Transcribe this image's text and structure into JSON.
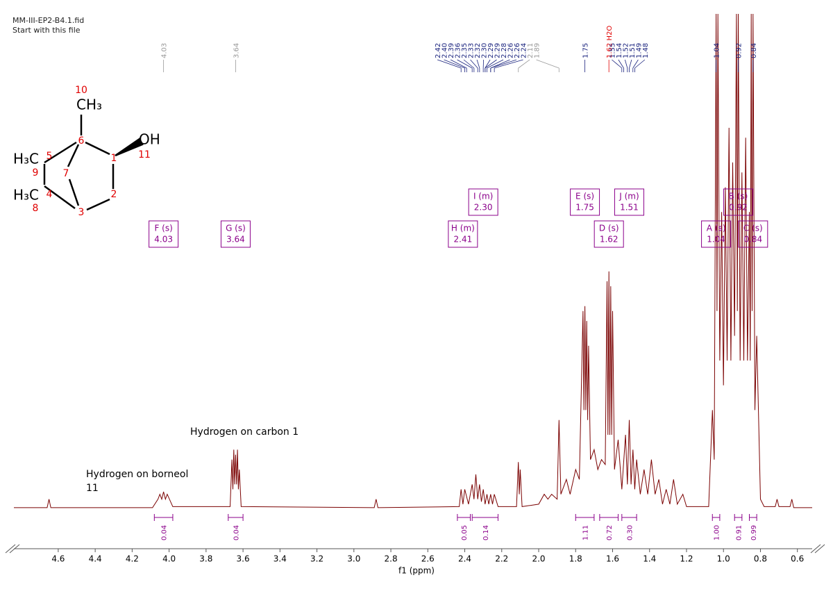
{
  "structure": {
    "labels": [
      "10",
      "CH₃",
      "6",
      "OH",
      "11",
      "1",
      "5",
      "H₃C",
      "9",
      "7",
      "2",
      "H₃C",
      "4",
      "8",
      "3"
    ]
  },
  "chart_data": {
    "type": "line",
    "title": "MM-III-EP2-B4.1.fid",
    "subtitle": "Start with this file",
    "x_label": "f1 (ppm)",
    "annotations": [
      "Hydrogen on carbon 1",
      "Hydrogen on borneol",
      "11"
    ],
    "xlim": [
      4.84,
      0.52
    ],
    "ylim": [
      0,
      100
    ],
    "xticks": [
      4.6,
      4.4,
      4.2,
      {
        "value": 4,
        "label": "4.0"
      },
      3.8,
      3.6,
      3.4,
      3.2,
      {
        "value": 3,
        "label": "3.0"
      },
      2.8,
      2.6,
      2.4,
      2.2,
      {
        "value": 2,
        "label": "2.0"
      },
      1.8,
      1.6,
      1.4,
      1.2,
      {
        "value": 1,
        "label": "1.0"
      },
      0.8,
      0.6
    ],
    "series": [
      {
        "color": "#7a0000",
        "x": [
          4.84,
          4.66,
          4.65,
          4.64,
          4.09,
          4.06,
          4.05,
          4.04,
          4.03,
          4.02,
          4.01,
          3.98,
          3.67,
          3.66,
          3.655,
          3.65,
          3.645,
          3.64,
          3.635,
          3.63,
          3.625,
          3.62,
          3.61,
          2.89,
          2.88,
          2.87,
          2.43,
          2.42,
          2.41,
          2.4,
          2.38,
          2.36,
          2.35,
          2.34,
          2.33,
          2.32,
          2.31,
          2.3,
          2.29,
          2.28,
          2.27,
          2.26,
          2.25,
          2.24,
          2.22,
          2.12,
          2.11,
          2.105,
          2.1,
          2.09,
          2.0,
          1.97,
          1.95,
          1.93,
          1.9,
          1.89,
          1.88,
          1.85,
          1.83,
          1.8,
          1.78,
          1.76,
          1.755,
          1.75,
          1.745,
          1.74,
          1.735,
          1.73,
          1.72,
          1.7,
          1.68,
          1.66,
          1.64,
          1.63,
          1.625,
          1.62,
          1.615,
          1.61,
          1.605,
          1.6,
          1.59,
          1.57,
          1.55,
          1.53,
          1.52,
          1.51,
          1.5,
          1.49,
          1.48,
          1.47,
          1.45,
          1.43,
          1.41,
          1.39,
          1.37,
          1.35,
          1.33,
          1.31,
          1.29,
          1.27,
          1.25,
          1.22,
          1.2,
          1.08,
          1.06,
          1.05,
          1.04,
          1.035,
          1.03,
          1.02,
          1.01,
          1.0,
          0.99,
          0.98,
          0.97,
          0.96,
          0.95,
          0.94,
          0.93,
          0.925,
          0.92,
          0.91,
          0.9,
          0.89,
          0.88,
          0.87,
          0.86,
          0.855,
          0.85,
          0.845,
          0.84,
          0.83,
          0.82,
          0.8,
          0.78,
          0.72,
          0.71,
          0.7,
          0.64,
          0.63,
          0.62,
          0.52
        ],
        "values": [
          0.3,
          0.3,
          2,
          0.3,
          0.3,
          2,
          3,
          2,
          3.5,
          2,
          3,
          0.5,
          0.5,
          10,
          4,
          12,
          5,
          11,
          5,
          12,
          4,
          8,
          0.5,
          0.3,
          2,
          0.3,
          0.5,
          4,
          1,
          4,
          1,
          5,
          2,
          7,
          2,
          5,
          1.5,
          4,
          1,
          3,
          1,
          3,
          1,
          3,
          0.5,
          0.5,
          9.5,
          3,
          8,
          0.5,
          1,
          3,
          2,
          3,
          2,
          18,
          3,
          6,
          3,
          8,
          6,
          40,
          20,
          41,
          20,
          38,
          18,
          33,
          10,
          12,
          8,
          10,
          9,
          46,
          15,
          48,
          15,
          45,
          15,
          40,
          8,
          14,
          4,
          15,
          5,
          18,
          5,
          12,
          4,
          10,
          3,
          8,
          3,
          10,
          3,
          6,
          1,
          4,
          1,
          6,
          1,
          3,
          0.5,
          0.5,
          20,
          10,
          100,
          40,
          100,
          30,
          60,
          25,
          65,
          30,
          77,
          30,
          70,
          35,
          100,
          40,
          100,
          30,
          68,
          30,
          75,
          30,
          60,
          30,
          100,
          40,
          100,
          20,
          35,
          2,
          0.5,
          0.5,
          2,
          0.5,
          0.5,
          2,
          0.3,
          0.3
        ]
      }
    ],
    "peak_labels": [
      {
        "value": 4.03,
        "label": "4.03",
        "color": "#999999"
      },
      {
        "value": 3.64,
        "label": "3.64",
        "color": "#999999"
      },
      {
        "value": 2.42,
        "label": "2.42",
        "color": "#1a237e"
      },
      {
        "value": 2.4,
        "label": "2.40",
        "color": "#1a237e"
      },
      {
        "value": 2.39,
        "label": "2.39",
        "color": "#1a237e"
      },
      {
        "value": 2.36,
        "label": "2.36",
        "color": "#1a237e"
      },
      {
        "value": 2.35,
        "label": "2.35",
        "color": "#1a237e"
      },
      {
        "value": 2.33,
        "label": "2.33",
        "color": "#1a237e"
      },
      {
        "value": 2.32,
        "label": "2.32",
        "color": "#1a237e"
      },
      {
        "value": 2.3,
        "label": "2.30",
        "color": "#1a237e"
      },
      {
        "value": 2.29,
        "label": "2.29",
        "color": "#1a237e"
      },
      {
        "value": 2.29,
        "label": "2.29",
        "color": "#1a237e"
      },
      {
        "value": 2.28,
        "label": "2.28",
        "color": "#1a237e"
      },
      {
        "value": 2.26,
        "label": "2.26",
        "color": "#1a237e"
      },
      {
        "value": 2.26,
        "label": "2.26",
        "color": "#1a237e"
      },
      {
        "value": 2.24,
        "label": "2.24",
        "color": "#1a237e"
      },
      {
        "value": 2.11,
        "label": "2.11",
        "color": "#999999"
      },
      {
        "value": 1.89,
        "label": "1.89",
        "color": "#999999"
      },
      {
        "value": 1.75,
        "label": "1.75",
        "color": "#1a237e"
      },
      {
        "value": 1.62,
        "label": "1.62 H2O",
        "color": "#e00000"
      },
      {
        "value": 1.55,
        "label": "1.55",
        "color": "#1a237e"
      },
      {
        "value": 1.54,
        "label": "1.54",
        "color": "#1a237e"
      },
      {
        "value": 1.52,
        "label": "1.52",
        "color": "#1a237e"
      },
      {
        "value": 1.51,
        "label": "1.51",
        "color": "#1a237e"
      },
      {
        "value": 1.49,
        "label": "1.49",
        "color": "#1a237e"
      },
      {
        "value": 1.48,
        "label": "1.48",
        "color": "#1a237e"
      },
      {
        "value": 1.04,
        "label": "1.04",
        "color": "#1a237e"
      },
      {
        "value": 0.92,
        "label": "0.92",
        "color": "#1a237e"
      },
      {
        "value": 0.84,
        "label": "0.84",
        "color": "#1a237e"
      }
    ],
    "multiplets": [
      {
        "label": "F (s)",
        "shift": 4.03
      },
      {
        "label": "G (s)",
        "shift": 3.64
      },
      {
        "label": "H (m)",
        "shift": 2.41
      },
      {
        "label": "I (m)",
        "shift": {
          "value": 2.3,
          "label": "2.30"
        }
      },
      {
        "label": "D (s)",
        "shift": 1.62
      },
      {
        "label": "E (s)",
        "shift": 1.75
      },
      {
        "label": "J (m)",
        "shift": 1.51
      },
      {
        "label": "A (s)",
        "shift": 1.04
      },
      {
        "label": "B (s)",
        "shift": 0.92
      },
      {
        "label": "C (s)",
        "shift": 0.84
      }
    ],
    "multiplet_color": "#8b008b",
    "integrals": [
      {
        "from": 4.08,
        "to": 3.98,
        "value": 0.04,
        "label": "0.04"
      },
      {
        "from": 3.68,
        "to": 3.6,
        "value": 0.04,
        "label": "0.04"
      },
      {
        "from": 2.44,
        "to": 2.37,
        "value": 0.05,
        "label": "0.05"
      },
      {
        "from": 2.36,
        "to": 2.22,
        "value": 0.14,
        "label": "0.14"
      },
      {
        "from": 1.8,
        "to": 1.7,
        "value": 1.11,
        "label": "1.11"
      },
      {
        "from": 1.67,
        "to": 1.57,
        "value": 0.72,
        "label": "0.72"
      },
      {
        "from": 1.55,
        "to": 1.47,
        "value": 0.3,
        "label": "0.30"
      },
      {
        "from": 1.06,
        "to": 1.02,
        "value": 1,
        "label": "1.00"
      },
      {
        "from": 0.94,
        "to": 0.9,
        "value": 0.91,
        "label": "0.91"
      },
      {
        "from": 0.86,
        "to": 0.82,
        "value": 0.99,
        "label": "0.99"
      }
    ]
  }
}
